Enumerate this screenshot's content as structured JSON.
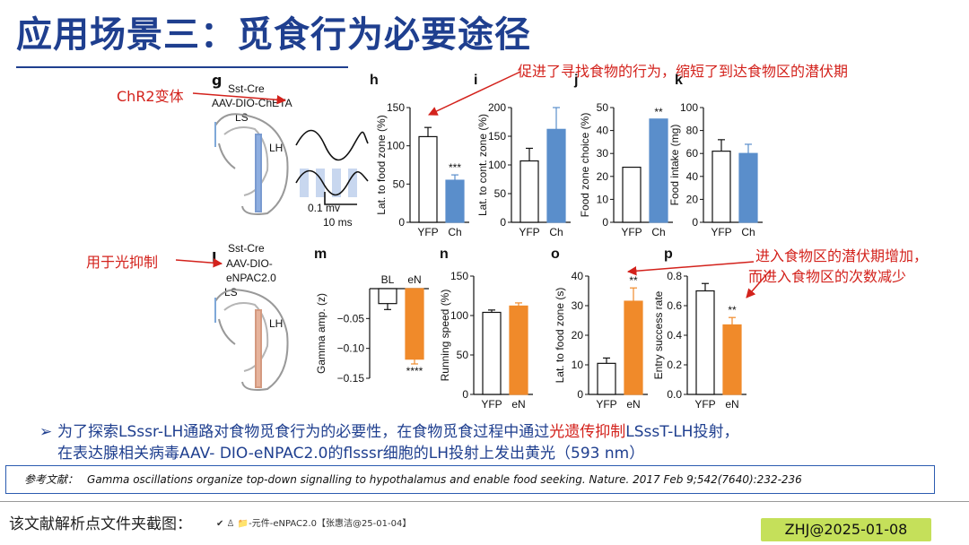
{
  "page": {
    "title": "应用场景三：觅食行为必要途径",
    "annotations": {
      "top_right": "促进了寻找食物的行为，缩短了到达食物区的潜伏期",
      "chr2": "ChR2变体",
      "inhibit": "用于光抑制",
      "bottom_right_1": "进入食物区的潜伏期增加，",
      "bottom_right_2": "而进入食物区的次数减少"
    }
  },
  "panel_g": {
    "letter": "g",
    "line1": "Sst-Cre",
    "line2": "AAV-DIO-ChETA",
    "ls": "LS",
    "lh": "LH",
    "scale_mv": "0.1 mv",
    "scale_ms": "10 ms"
  },
  "panel_l": {
    "letter": "l",
    "line1": "Sst-Cre",
    "line2": "AAV-DIO-",
    "line3": "eNPAC2.0",
    "ls": "LS",
    "lh": "LH"
  },
  "chart_data": [
    {
      "id": "h",
      "type": "bar",
      "ylabel": "Lat. to food zone (%)",
      "categories": [
        "YFP",
        "Ch"
      ],
      "values": [
        112,
        55
      ],
      "errors": [
        12,
        7
      ],
      "yticks": [
        0,
        50,
        100,
        150
      ],
      "ylim": [
        0,
        150
      ],
      "significance": "***",
      "colors": [
        "#ffffff",
        "#5a8ecb"
      ]
    },
    {
      "id": "i",
      "type": "bar",
      "ylabel": "Lat. to cont. zone (%)",
      "categories": [
        "YFP",
        "Ch"
      ],
      "values": [
        107,
        162
      ],
      "errors": [
        22,
        38
      ],
      "yticks": [
        0,
        50,
        100,
        150,
        200
      ],
      "ylim": [
        0,
        200
      ],
      "significance": "",
      "colors": [
        "#ffffff",
        "#5a8ecb"
      ]
    },
    {
      "id": "j",
      "type": "bar",
      "ylabel": "Food zone choice (%)",
      "categories": [
        "YFP",
        "Ch"
      ],
      "values": [
        24,
        45
      ],
      "errors": [
        0,
        0
      ],
      "yticks": [
        0,
        10,
        20,
        30,
        40,
        50
      ],
      "ylim": [
        0,
        50
      ],
      "significance": "**",
      "colors": [
        "#ffffff",
        "#5a8ecb"
      ]
    },
    {
      "id": "k",
      "type": "bar",
      "ylabel": "Food intake (mg)",
      "categories": [
        "YFP",
        "Ch"
      ],
      "values": [
        62,
        60
      ],
      "errors": [
        10,
        8
      ],
      "yticks": [
        0,
        20,
        40,
        60,
        80,
        100
      ],
      "ylim": [
        0,
        100
      ],
      "significance": "",
      "colors": [
        "#ffffff",
        "#5a8ecb"
      ]
    },
    {
      "id": "m",
      "type": "bar",
      "ylabel": "Gamma amp. (z)",
      "categories": [
        "BL",
        "eN"
      ],
      "values": [
        -0.025,
        -0.118
      ],
      "errors": [
        0.01,
        0.008
      ],
      "yticks": [
        -0.05,
        -0.1,
        -0.15
      ],
      "ytick_labels": [
        "−0.05",
        "−0.10",
        "−0.15"
      ],
      "ylim": [
        -0.15,
        0
      ],
      "significance": "****",
      "colors": [
        "#ffffff",
        "#f08a2a"
      ]
    },
    {
      "id": "n",
      "type": "bar",
      "ylabel": "Running speed (%)",
      "categories": [
        "YFP",
        "eN"
      ],
      "values": [
        104,
        112
      ],
      "errors": [
        3,
        4
      ],
      "yticks": [
        0,
        50,
        100,
        150
      ],
      "ylim": [
        0,
        150
      ],
      "significance": "",
      "colors": [
        "#ffffff",
        "#f08a2a"
      ]
    },
    {
      "id": "o",
      "type": "bar",
      "ylabel": "Lat. to food zone (s)",
      "categories": [
        "YFP",
        "eN"
      ],
      "values": [
        10.5,
        31.5
      ],
      "errors": [
        1.8,
        4.5
      ],
      "yticks": [
        0,
        10,
        20,
        30,
        40
      ],
      "ylim": [
        0,
        40
      ],
      "significance": "**",
      "colors": [
        "#ffffff",
        "#f08a2a"
      ]
    },
    {
      "id": "p",
      "type": "bar",
      "ylabel": "Entry success rate",
      "categories": [
        "YFP",
        "eN"
      ],
      "values": [
        0.7,
        0.47
      ],
      "errors": [
        0.05,
        0.05
      ],
      "yticks": [
        0,
        0.2,
        0.4,
        0.6,
        0.8
      ],
      "ytick_labels": [
        "0.0",
        "0.2",
        "0.4",
        "0.6",
        "0.8"
      ],
      "ylim": [
        0,
        0.8
      ],
      "significance": "**",
      "colors": [
        "#ffffff",
        "#f08a2a"
      ]
    }
  ],
  "bullet": {
    "part1": "为了探索LSssr-LH通路对食物觅食行为的必要性，在食物觅食过程中通过",
    "highlight": "光遗传抑制",
    "part2": "LSssT-LH投射，",
    "line2": "在表达腺相关病毒AAV- DIO-eNPAC2.0的flsssr细胞的LH投射上发出黄光（593 nm）"
  },
  "reference": {
    "label": "参考文献：",
    "text": "Gamma oscillations organize top-down signalling to hypothalamus and enable food seeking. Nature. 2017 Feb 9;542(7640):232-236"
  },
  "footer": {
    "label": "该文献解析点文件夹截图：",
    "path": "✔ ♙ 📁-元件-eNPAC2.0【张惠洁@25-01-04】",
    "badge": "ZHJ@2025-01-08"
  }
}
